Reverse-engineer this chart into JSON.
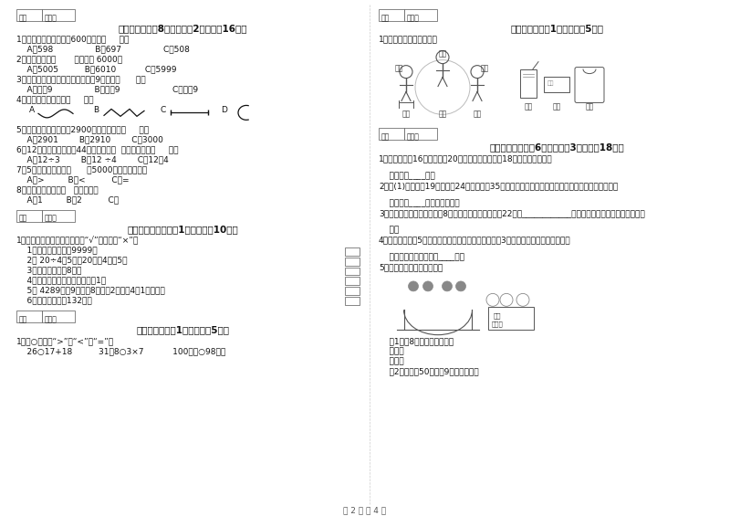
{
  "bg_color": "#ffffff",
  "page_num": "第 2 页 共 4 页",
  "left_col": {
    "sec4_header": "四、选一选（兲8小题，每题2分，共膈16分）",
    "sec4_items": [
      "1．下面各数中，最接近600的数是（     ）。",
      "    A．598                B．697                C．508",
      "2．下面的数，（       ）最接近 6000。",
      "    A．5005          B．6010           C．5999",
      "3．在有余数的除法里，如果除数是9，余数（      ）。",
      "    A．大于9                B．小于9                    C．等于9",
      "4．下列线中，线段是（     ）。"
    ],
    "sec4_items2": [
      "5．一百一百地数，数到2900，下一个数是（     ）。",
      "    A．2901        B．2910        C．3000",
      "6．12个杯子，平均分成44份，每份有（  ）个，列式为（     ）。",
      "    A．12÷3        B．12 ÷4        C．12－4",
      "7．5千克沙子的重量（      ）5000克棉花的重量。",
      "    A．>         B．<          C．=",
      "8．一个三角板上有（   ）个直角。",
      "    A．1         B．2          C．"
    ],
    "sec5_header": "五、判断对与错（兲1大题，共膈10分）",
    "sec5_intro": "1．我会判断，对的在括号里打“√”，错的打“×”。",
    "sec5_items": [
      "    1、最大的四位数是9999。",
      "    2、 20÷4＝5读作20除以4等于5。",
      "    3、课桌的高度是8米。",
      "    4、两个相邻大的数相除，商是1。",
      "    5、 4289是〔9个千、8个百、2个十和4个1组成的。",
      "    6、小红的身高是132米。"
    ],
    "sec6_header": "六、比一比（兲1大题，共膁5分）",
    "sec6_intro": "1．在○里填上“>”，“<”或“=”。",
    "sec6_items": "    26○17+18          31－8○3×7           100厘米○98厘米"
  },
  "right_col": {
    "sec7_header": "七、连一连（兲1大题，共膁5分）",
    "sec7_intro": "1．我会观察，我会连线。",
    "person_labels": [
      "小润",
      "小客",
      "小润"
    ],
    "obj_labels": [
      "小红",
      "小强",
      "小润"
    ],
    "sec8_header": "八、解决问题（兲6小题，每题3分，共膈18分）",
    "sec8_items": [
      "1．同学们做了16只红风车，20只花风车，送给幼儱18只，还有多少只？",
      "",
      "    答：还有____只。",
      "2．二(1)班有男生19人，女生24人，一共有35个苹果，如果每人分一个苹果，有多少人分不到苹果？",
      "",
      "    答：还有____人分不到苹果。",
      "3．同学们买小旗，小黄旗有8面，小红旗的比小黄旗多22面，____________？（先提出问题，再列式计算。）",
      "",
      "    答：",
      "4．二年级一班有5个红皮球，黄皮球的个数是红皮球的3倍，黄皮球比红皮球多几个？",
      "",
      "    答：黄皮球比红皮球多____个。",
      "5．星期日同学们去游乐园。",
      "",
      "    （1）予8张门票用多少元？",
      "    乘法：",
      "    加法：",
      "    （2）小润拿50元，亙9张门票够吗？"
    ]
  }
}
